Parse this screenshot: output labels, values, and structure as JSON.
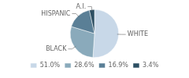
{
  "chart_data": {
    "type": "pie",
    "categories": [
      "WHITE",
      "BLACK",
      "HISPANIC",
      "A.I."
    ],
    "values": [
      51.0,
      28.6,
      16.9,
      3.4
    ],
    "value_labels": [
      "51.0%",
      "28.6%",
      "16.9%",
      "3.4%"
    ],
    "colors": [
      "#c8d8e8",
      "#8aaabb",
      "#5a7f96",
      "#2d4f63"
    ],
    "legend": "bottom"
  }
}
